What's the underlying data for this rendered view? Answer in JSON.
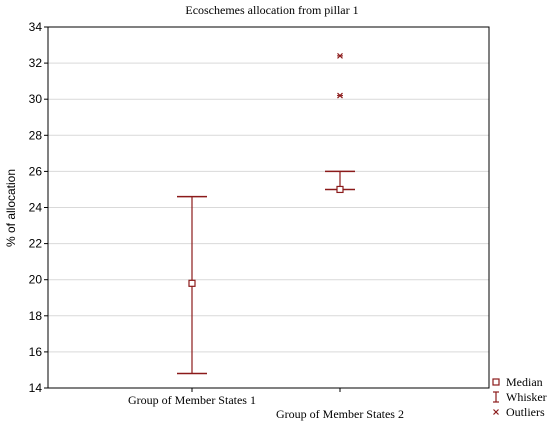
{
  "chart_data": {
    "type": "box",
    "title": "Ecoschemes allocation from pillar 1",
    "ylabel": "% of allocation",
    "xlabel": "",
    "ylim": [
      14,
      34
    ],
    "yticks": [
      14,
      16,
      18,
      20,
      22,
      24,
      26,
      28,
      30,
      32,
      34
    ],
    "grid": true,
    "legend_placement": "bottom-right",
    "legend": [
      {
        "key": "median",
        "label": "Median"
      },
      {
        "key": "whisker",
        "label": "Whisker"
      },
      {
        "key": "outliers",
        "label": "Outliers"
      }
    ],
    "categories": [
      "Group of Member States 1",
      "Group of Member States 2"
    ],
    "groups": [
      {
        "category": "Group of Member States 1",
        "median": 19.8,
        "whisker_low": 14.8,
        "whisker_high": 24.6,
        "outliers": []
      },
      {
        "category": "Group of Member States 2",
        "median": 25.0,
        "whisker_low": 25.0,
        "whisker_high": 26.0,
        "outliers": [
          30.2,
          32.4
        ]
      }
    ],
    "colors": {
      "series": "#8b1a1a",
      "axis": "#000000",
      "grid": "#d9d9d9"
    }
  }
}
